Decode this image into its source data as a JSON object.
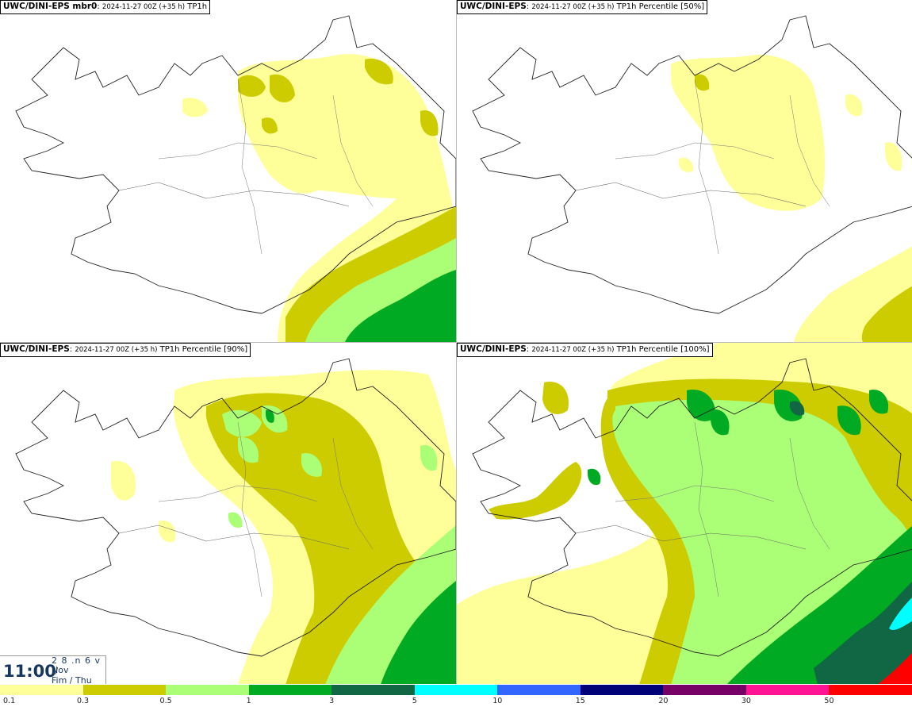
{
  "panels": [
    {
      "model": "UWC/DINI-EPS mbr0",
      "run": "2024-11-27 00Z (+35 h)",
      "param": "TP1h",
      "intensity": 0.25
    },
    {
      "model": "UWC/DINI-EPS",
      "run": "2024-11-27 00Z (+35 h)",
      "param": "TP1h Percentile [50%]",
      "intensity": 0.15
    },
    {
      "model": "UWC/DINI-EPS",
      "run": "2024-11-27 00Z (+35 h)",
      "param": "TP1h Percentile [90%]",
      "intensity": 0.55
    },
    {
      "model": "UWC/DINI-EPS",
      "run": "2024-11-27 00Z (+35 h)",
      "param": "TP1h Percentile [100%]",
      "intensity": 0.9
    }
  ],
  "clock": {
    "time": "11:00",
    "line1": "2 8 .n 6 v ./",
    "line2": "Nov",
    "line3": "Fim / Thu"
  },
  "legend": {
    "labels": [
      "0.1",
      "0.3",
      "0.5",
      "1",
      "3",
      "5",
      "10",
      "15",
      "20",
      "30",
      "50"
    ],
    "colors": [
      "#ffff99",
      "#cccc00",
      "#aaff77",
      "#00aa22",
      "#116644",
      "#00ffff",
      "#3366ff",
      "#000077",
      "#770066",
      "#ff1493",
      "#ff0000"
    ]
  },
  "colors": {
    "light_yellow": "#ffff99",
    "olive": "#cccc00",
    "light_green": "#aaff77",
    "green": "#00aa22",
    "dark_green": "#116644",
    "cyan": "#00ffff"
  }
}
